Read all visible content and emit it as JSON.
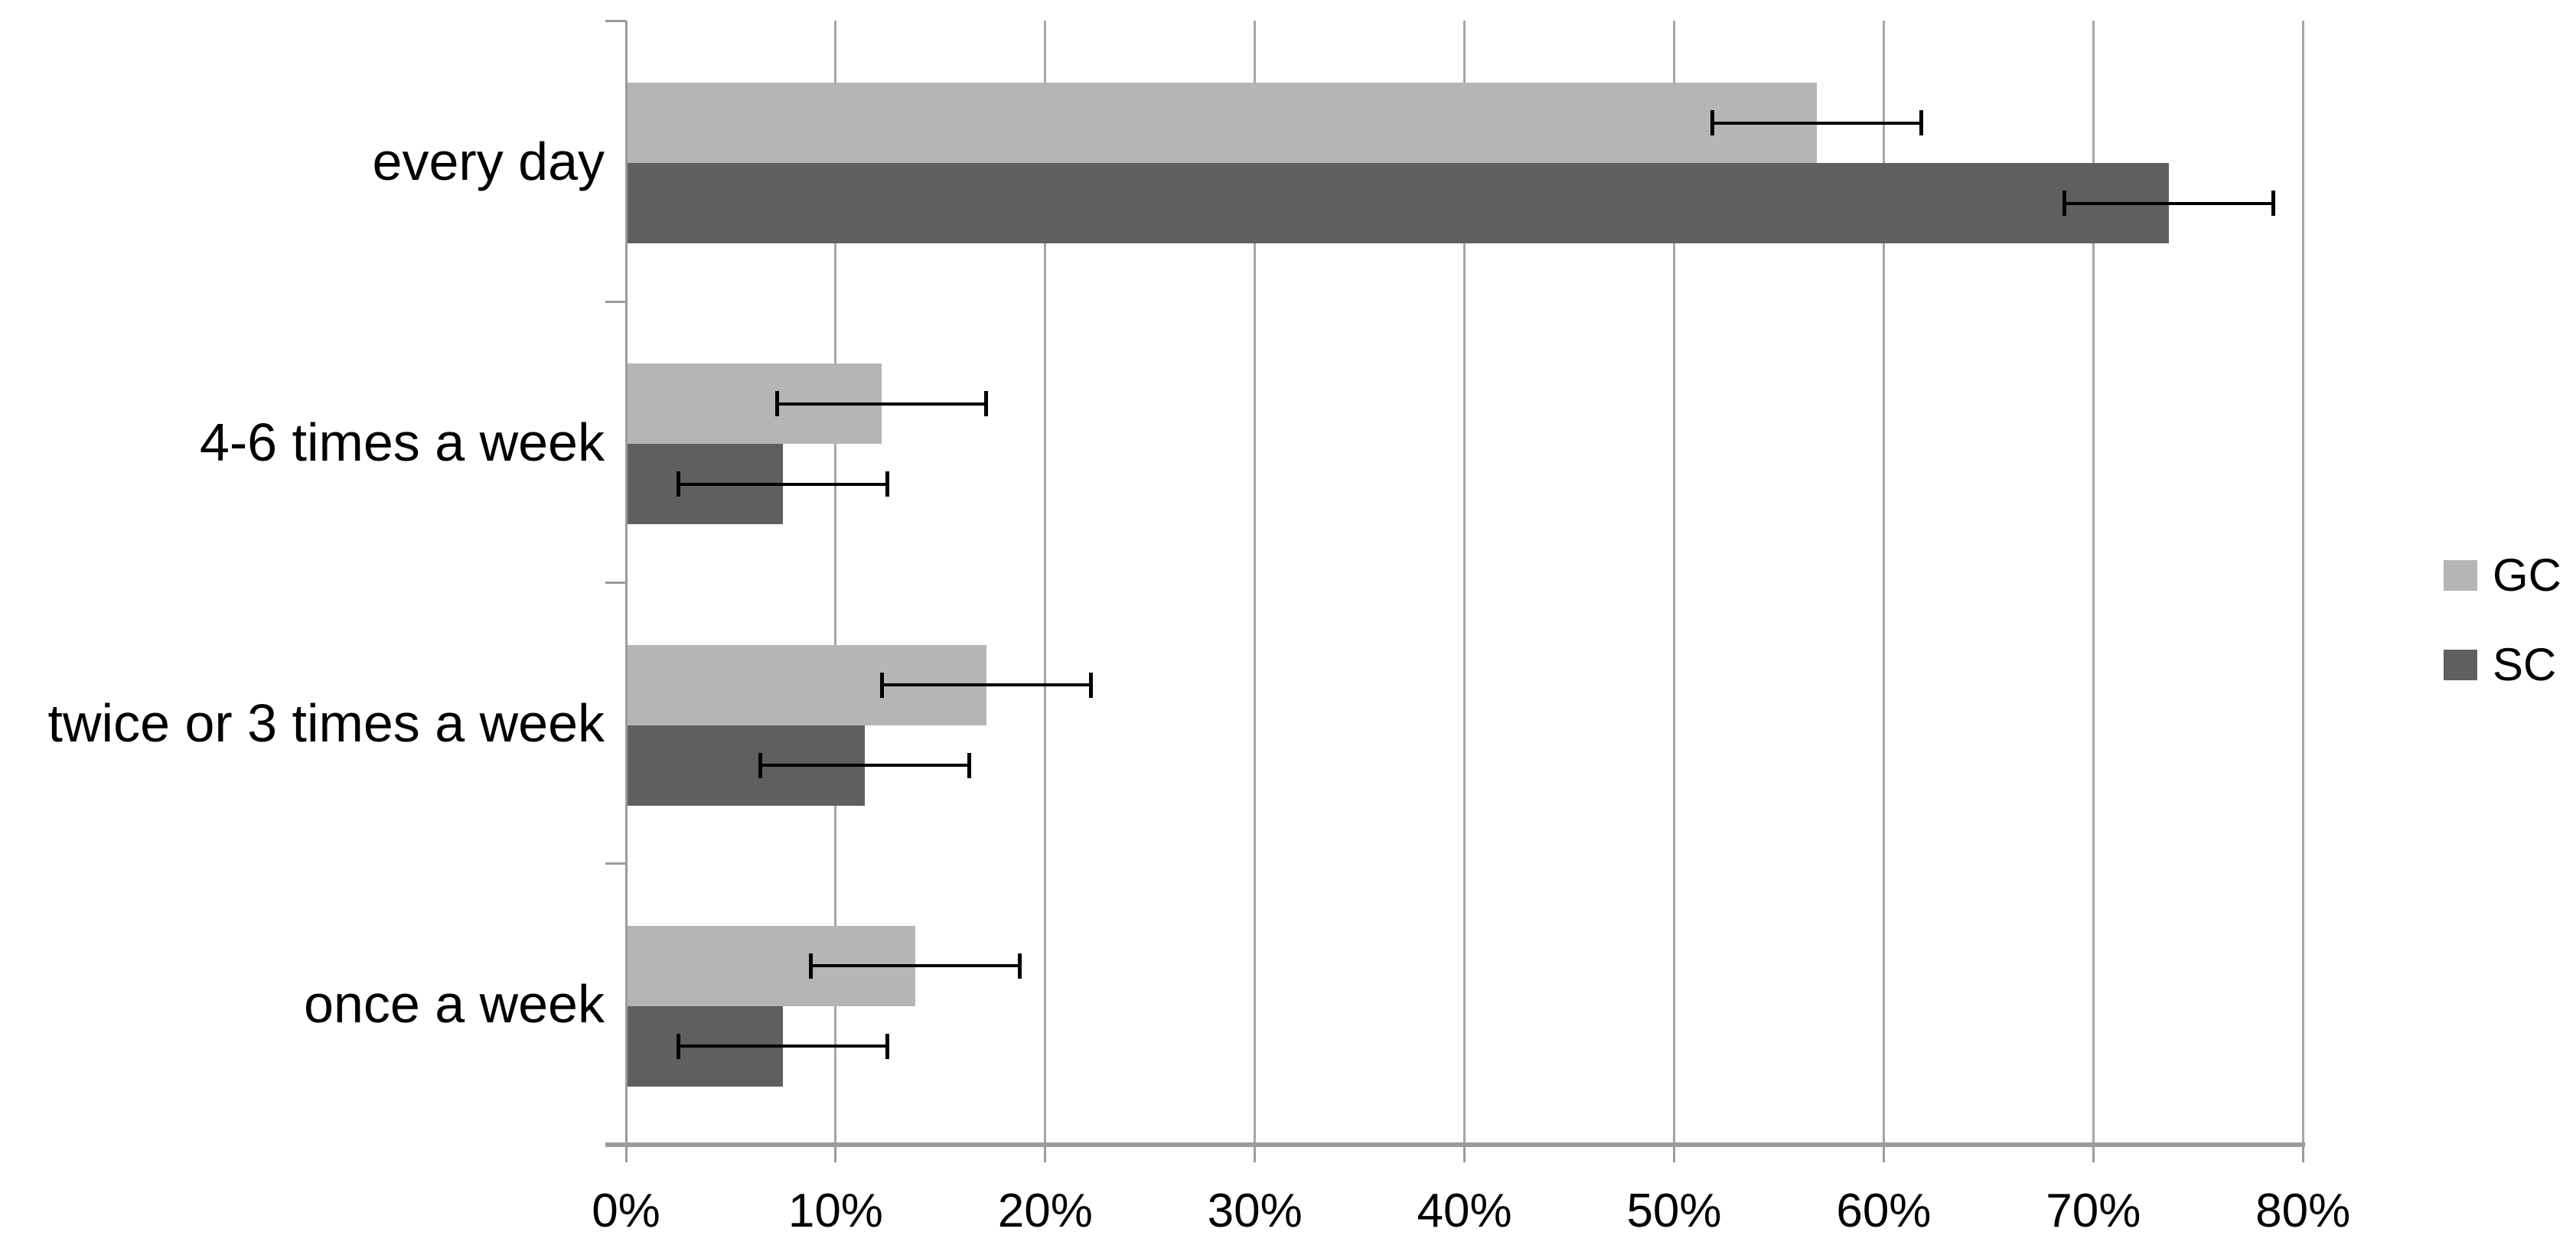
{
  "chart_data": {
    "type": "bar",
    "orientation": "horizontal",
    "title": "",
    "xlabel": "",
    "ylabel": "",
    "categories": [
      "every day",
      "4-6 times a week",
      "twice or 3 times a week",
      "once a week"
    ],
    "series": [
      {
        "name": "GC",
        "color": "#b5b5b5",
        "values": [
          56.8,
          12.2,
          17.2,
          13.8
        ],
        "error_plus_minus": [
          5,
          5,
          5,
          5
        ]
      },
      {
        "name": "SC",
        "color": "#5f5f5f",
        "values": [
          73.6,
          7.5,
          11.4,
          7.5
        ],
        "error_plus_minus": [
          5,
          5,
          5,
          5
        ]
      }
    ],
    "x_axis": {
      "min": 0,
      "max": 80,
      "tick_step": 10,
      "tick_labels": [
        "0%",
        "10%",
        "20%",
        "30%",
        "40%",
        "50%",
        "60%",
        "70%",
        "80%"
      ],
      "unit": "percent"
    },
    "grid": true,
    "error_bars": true,
    "legend": {
      "position": "right",
      "entries": [
        "GC",
        "SC"
      ]
    }
  },
  "colors": {
    "background": "#ffffff",
    "gridline": "#a6a6a6",
    "axis": "#9b9b9b",
    "error_bar": "#000000",
    "text": "#000000"
  }
}
